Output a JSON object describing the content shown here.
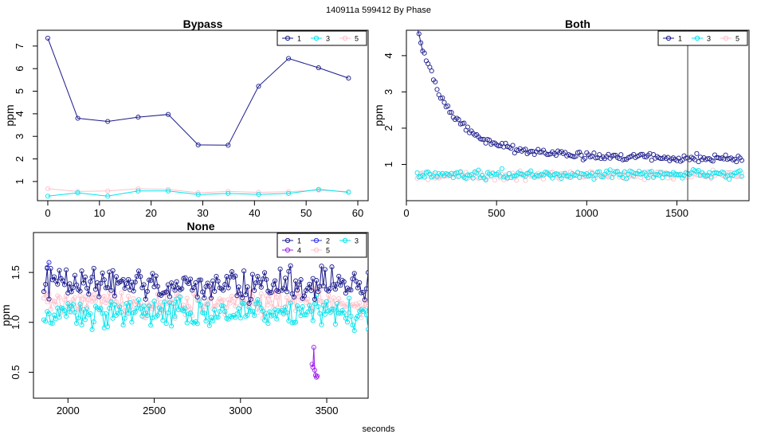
{
  "figure": {
    "title": "140911a    599412   By Phase",
    "xlabel": "seconds"
  },
  "colors": {
    "1": "#1a1a8c",
    "2": "#3030e0",
    "3": "#00e5ee",
    "4": "#a020f0",
    "5": "#ffc0cb"
  },
  "chart_data": [
    {
      "type": "line",
      "title": "Bypass",
      "ylabel": "ppm",
      "xlim": [
        -2,
        62
      ],
      "ylim": [
        0.15,
        7.7
      ],
      "xticks": [
        0,
        10,
        20,
        30,
        40,
        50,
        60
      ],
      "yticks": [
        1,
        2,
        3,
        4,
        5,
        6,
        7
      ],
      "legend": {
        "position": "top-right",
        "entries": [
          "1",
          "3",
          "5"
        ]
      },
      "series": [
        {
          "name": "1",
          "x": [
            0,
            5.8,
            11.6,
            17.5,
            23.3,
            29.1,
            34.9,
            40.8,
            46.6,
            52.4,
            58.2
          ],
          "y": [
            7.35,
            3.8,
            3.66,
            3.85,
            3.97,
            2.62,
            2.61,
            5.22,
            6.45,
            6.04,
            5.58
          ]
        },
        {
          "name": "3",
          "x": [
            0,
            5.8,
            11.6,
            17.5,
            23.3,
            29.1,
            34.9,
            40.8,
            46.6,
            52.4,
            58.2
          ],
          "y": [
            0.35,
            0.5,
            0.35,
            0.58,
            0.58,
            0.42,
            0.47,
            0.43,
            0.47,
            0.65,
            0.52
          ]
        },
        {
          "name": "5",
          "x": [
            0,
            5.8,
            11.6,
            17.5,
            23.3,
            29.1,
            34.9,
            40.8,
            46.6,
            52.4,
            58.2
          ],
          "y": [
            0.68,
            0.56,
            0.58,
            0.68,
            0.65,
            0.5,
            0.56,
            0.52,
            0.55,
            0.62,
            0.55
          ]
        }
      ]
    },
    {
      "type": "scatter",
      "title": "Both",
      "ylabel": "ppm",
      "xlim": [
        0,
        1900
      ],
      "ylim": [
        0.0,
        4.7
      ],
      "xticks": [
        0,
        500,
        1000,
        1500
      ],
      "yticks": [
        1,
        2,
        3,
        4
      ],
      "vline": 1560,
      "legend": {
        "position": "top-right",
        "entries": [
          "1",
          "3",
          "5"
        ]
      },
      "series": [
        {
          "name": "1",
          "model": "decay",
          "x_start": 60,
          "x_end": 1860,
          "step": 10,
          "start_value": 4.4,
          "end_value": 1.1,
          "noise": 0.15
        },
        {
          "name": "3",
          "model": "flat",
          "x_start": 60,
          "x_end": 1860,
          "step": 10,
          "center": 0.72,
          "noise": 0.14
        },
        {
          "name": "5",
          "model": "flat",
          "x_start": 60,
          "x_end": 1860,
          "step": 10,
          "center": 0.7,
          "noise": 0.14
        }
      ]
    },
    {
      "type": "line",
      "title": "None",
      "ylabel": "ppm",
      "xlim": [
        1800,
        3740
      ],
      "ylim": [
        0.24,
        1.9
      ],
      "xticks": [
        2000,
        2500,
        3000,
        3500
      ],
      "yticks": [
        0.5,
        1.0,
        1.5
      ],
      "legend": {
        "position": "top-right",
        "entries": [
          "1",
          "2",
          "3",
          "4",
          "5"
        ]
      },
      "series": [
        {
          "name": "1",
          "model": "noisy",
          "x_start": 1860,
          "x_end": 3740,
          "step": 10,
          "center": 1.37,
          "noise": 0.2
        },
        {
          "name": "2",
          "x": [
            1880,
            1890
          ],
          "y": [
            1.55,
            1.6
          ]
        },
        {
          "name": "3",
          "model": "noisy",
          "x_start": 1860,
          "x_end": 3740,
          "step": 10,
          "center": 1.1,
          "noise": 0.18
        },
        {
          "name": "4",
          "x": [
            3415,
            3420,
            3425,
            3430,
            3435,
            3440,
            3445
          ],
          "y": [
            0.58,
            0.55,
            0.75,
            0.52,
            0.47,
            0.45,
            0.46
          ]
        },
        {
          "name": "5",
          "model": "noisy",
          "x_start": 1860,
          "x_end": 3740,
          "step": 10,
          "center": 1.2,
          "noise": 0.16
        }
      ]
    }
  ]
}
